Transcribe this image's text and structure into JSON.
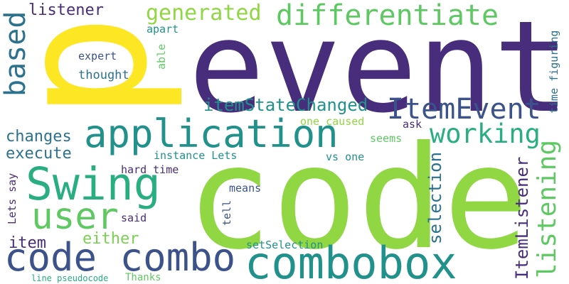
{
  "palette": {
    "dark_purple": "#472d7b",
    "indigo": "#3b528b",
    "slate_blue": "#2c728e",
    "teal": "#21918c",
    "sea_green": "#28ae80",
    "green": "#5ec962",
    "lime": "#7ad151",
    "bright_green": "#90d743",
    "yellow": "#fde725"
  },
  "words": {
    "p": "p",
    "event": "event",
    "code": "code",
    "application": "application",
    "swing": "Swing",
    "user": "user",
    "code_combo": "code combo",
    "combobox": "combobox",
    "differentiate": "differentiate",
    "generated": "generated",
    "listener": "listener",
    "based": "based",
    "itemevent": "ItemEvent",
    "itemstatechanged": "itemStateChanged",
    "working": "working",
    "changes": "changes",
    "execute": "execute",
    "item": "item",
    "either": "either",
    "listening": "listening",
    "itemlistener": "ItemListener",
    "selection": "selection",
    "expert": "expert",
    "thought": "thought",
    "apart": "apart",
    "able": "able",
    "time_figuring": "time figuring",
    "one_caused": "one caused",
    "seems": "seems",
    "ask": "ask",
    "instance_lets": "instance Lets",
    "vs_one": "vs one",
    "hard_time": "hard time",
    "lets_say": "Lets say",
    "means": "means",
    "tell": "tell",
    "said": "said",
    "setselection": "setSelection",
    "thanks": "Thanks",
    "line_pseudocode": "line pseudocode"
  }
}
